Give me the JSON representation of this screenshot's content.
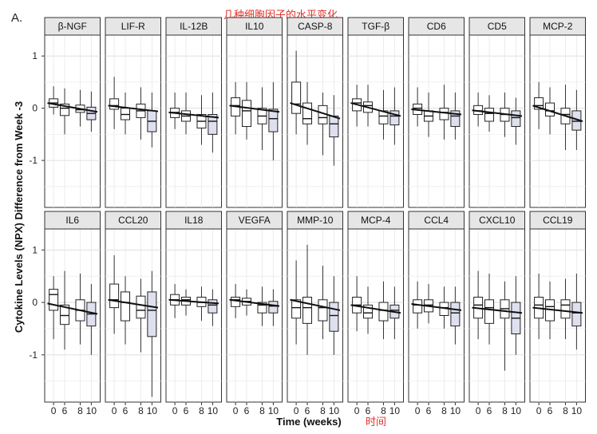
{
  "figure": {
    "panel_letter": "A.",
    "annotation_title": "几种细胞因子的水平变化",
    "annotation_xlabel": "时间"
  },
  "chart_data": {
    "type": "boxplot",
    "ylabel": "Cytokine Levels (NPX) Difference from Week -3",
    "xlabel": "Time (weeks)",
    "x_ticks": [
      "0",
      "6",
      "8",
      "10"
    ],
    "y_ticks": [
      1,
      0,
      -1
    ],
    "ylim": [
      -1.9,
      1.4
    ],
    "grid": true,
    "colors": {
      "box_fill_last": "#dfe0ef",
      "box_fill": "#ffffff",
      "strip_bg": "#e6e6e6",
      "trend_line": "#111111"
    },
    "facets": [
      {
        "label": "β-NGF",
        "trend": [
          0.1,
          -0.07
        ],
        "boxes": [
          {
            "q1": 0.02,
            "med": 0.1,
            "q3": 0.18,
            "lo": -0.12,
            "hi": 0.42
          },
          {
            "q1": -0.14,
            "med": 0.0,
            "q3": 0.08,
            "lo": -0.5,
            "hi": 0.38
          },
          {
            "q1": -0.08,
            "med": -0.03,
            "q3": 0.06,
            "lo": -0.35,
            "hi": 0.35
          },
          {
            "q1": -0.22,
            "med": -0.1,
            "q3": 0.02,
            "lo": -0.45,
            "hi": 0.32
          }
        ]
      },
      {
        "label": "LIF-R",
        "trend": [
          0.05,
          -0.06
        ],
        "boxes": [
          {
            "q1": -0.02,
            "med": 0.05,
            "q3": 0.18,
            "lo": -0.4,
            "hi": 0.6
          },
          {
            "q1": -0.22,
            "med": -0.12,
            "q3": 0.0,
            "lo": -0.5,
            "hi": 0.3
          },
          {
            "q1": -0.18,
            "med": -0.05,
            "q3": 0.08,
            "lo": -0.6,
            "hi": 0.4
          },
          {
            "q1": -0.45,
            "med": -0.25,
            "q3": -0.05,
            "lo": -0.75,
            "hi": 0.3
          }
        ]
      },
      {
        "label": "IL-12B",
        "trend": [
          -0.08,
          -0.18
        ],
        "boxes": [
          {
            "q1": -0.18,
            "med": -0.08,
            "q3": 0.0,
            "lo": -0.4,
            "hi": 0.3
          },
          {
            "q1": -0.25,
            "med": -0.15,
            "q3": -0.05,
            "lo": -0.5,
            "hi": 0.3
          },
          {
            "q1": -0.38,
            "med": -0.25,
            "q3": -0.12,
            "lo": -0.7,
            "hi": 0.25
          },
          {
            "q1": -0.5,
            "med": -0.25,
            "q3": -0.12,
            "lo": -0.85,
            "hi": 0.3
          }
        ]
      },
      {
        "label": "IL10",
        "trend": [
          0.05,
          -0.07
        ],
        "boxes": [
          {
            "q1": -0.15,
            "med": 0.05,
            "q3": 0.2,
            "lo": -0.5,
            "hi": 0.5
          },
          {
            "q1": -0.35,
            "med": -0.05,
            "q3": 0.15,
            "lo": -0.6,
            "hi": 0.5
          },
          {
            "q1": -0.3,
            "med": -0.15,
            "q3": 0.0,
            "lo": -0.8,
            "hi": 0.4
          },
          {
            "q1": -0.45,
            "med": -0.2,
            "q3": -0.02,
            "lo": -1.0,
            "hi": 0.5
          }
        ]
      },
      {
        "label": "CASP-8",
        "trend": [
          0.1,
          -0.2
        ],
        "boxes": [
          {
            "q1": -0.1,
            "med": 0.08,
            "q3": 0.5,
            "lo": -0.5,
            "hi": 1.1
          },
          {
            "q1": -0.3,
            "med": -0.2,
            "q3": 0.1,
            "lo": -0.7,
            "hi": 0.5
          },
          {
            "q1": -0.3,
            "med": -0.18,
            "q3": 0.05,
            "lo": -0.9,
            "hi": 0.3
          },
          {
            "q1": -0.55,
            "med": -0.3,
            "q3": -0.15,
            "lo": -1.1,
            "hi": 0.25
          }
        ]
      },
      {
        "label": "TGF-β",
        "trend": [
          0.1,
          -0.15
        ],
        "boxes": [
          {
            "q1": -0.05,
            "med": 0.1,
            "q3": 0.18,
            "lo": -0.35,
            "hi": 0.45
          },
          {
            "q1": -0.08,
            "med": 0.05,
            "q3": 0.12,
            "lo": -0.35,
            "hi": 0.45
          },
          {
            "q1": -0.3,
            "med": -0.15,
            "q3": -0.05,
            "lo": -0.6,
            "hi": 0.35
          },
          {
            "q1": -0.32,
            "med": -0.15,
            "q3": -0.05,
            "lo": -0.7,
            "hi": 0.4
          }
        ]
      },
      {
        "label": "CD6",
        "trend": [
          -0.02,
          -0.12
        ],
        "boxes": [
          {
            "q1": -0.12,
            "med": 0.0,
            "q3": 0.08,
            "lo": -0.35,
            "hi": 0.4
          },
          {
            "q1": -0.25,
            "med": -0.15,
            "q3": -0.05,
            "lo": -0.55,
            "hi": 0.3
          },
          {
            "q1": -0.22,
            "med": -0.08,
            "q3": 0.0,
            "lo": -0.6,
            "hi": 0.45
          },
          {
            "q1": -0.35,
            "med": -0.15,
            "q3": -0.05,
            "lo": -0.6,
            "hi": 0.3
          }
        ]
      },
      {
        "label": "CD5",
        "trend": [
          -0.04,
          -0.15
        ],
        "boxes": [
          {
            "q1": -0.12,
            "med": -0.05,
            "q3": 0.05,
            "lo": -0.35,
            "hi": 0.3
          },
          {
            "q1": -0.25,
            "med": -0.1,
            "q3": 0.0,
            "lo": -0.45,
            "hi": 0.25
          },
          {
            "q1": -0.25,
            "med": -0.12,
            "q3": 0.0,
            "lo": -0.55,
            "hi": 0.3
          },
          {
            "q1": -0.35,
            "med": -0.18,
            "q3": -0.05,
            "lo": -0.7,
            "hi": 0.2
          }
        ]
      },
      {
        "label": "MCP-2",
        "trend": [
          0.05,
          -0.25
        ],
        "boxes": [
          {
            "q1": -0.02,
            "med": 0.05,
            "q3": 0.2,
            "lo": -0.4,
            "hi": 0.5
          },
          {
            "q1": -0.15,
            "med": -0.05,
            "q3": 0.1,
            "lo": -0.5,
            "hi": 0.4
          },
          {
            "q1": -0.3,
            "med": -0.12,
            "q3": 0.0,
            "lo": -0.8,
            "hi": 0.45
          },
          {
            "q1": -0.42,
            "med": -0.25,
            "q3": -0.05,
            "lo": -0.8,
            "hi": 0.35
          }
        ]
      },
      {
        "label": "IL6",
        "trend": [
          -0.02,
          -0.22
        ],
        "boxes": [
          {
            "q1": -0.15,
            "med": 0.15,
            "q3": 0.25,
            "lo": -0.7,
            "hi": 0.5
          },
          {
            "q1": -0.42,
            "med": -0.25,
            "q3": -0.05,
            "lo": -0.9,
            "hi": 0.6
          },
          {
            "q1": -0.35,
            "med": -0.15,
            "q3": 0.05,
            "lo": -0.8,
            "hi": 0.55
          },
          {
            "q1": -0.45,
            "med": -0.22,
            "q3": 0.0,
            "lo": -1.0,
            "hi": 0.35
          }
        ]
      },
      {
        "label": "CCL20",
        "trend": [
          0.05,
          -0.1
        ],
        "boxes": [
          {
            "q1": -0.1,
            "med": 0.05,
            "q3": 0.35,
            "lo": -0.6,
            "hi": 0.9
          },
          {
            "q1": -0.35,
            "med": 0.0,
            "q3": 0.2,
            "lo": -0.8,
            "hi": 0.5
          },
          {
            "q1": -0.3,
            "med": -0.15,
            "q3": 0.12,
            "lo": -0.95,
            "hi": 0.45
          },
          {
            "q1": -0.65,
            "med": -0.15,
            "q3": 0.2,
            "lo": -1.8,
            "hi": 0.6
          }
        ]
      },
      {
        "label": "IL18",
        "trend": [
          0.05,
          -0.02
        ],
        "boxes": [
          {
            "q1": -0.05,
            "med": 0.05,
            "q3": 0.15,
            "lo": -0.3,
            "hi": 0.35
          },
          {
            "q1": -0.05,
            "med": 0.05,
            "q3": 0.1,
            "lo": -0.25,
            "hi": 0.25
          },
          {
            "q1": -0.08,
            "med": 0.0,
            "q3": 0.1,
            "lo": -0.35,
            "hi": 0.3
          },
          {
            "q1": -0.2,
            "med": -0.05,
            "q3": 0.05,
            "lo": -0.45,
            "hi": 0.25
          }
        ]
      },
      {
        "label": "VEGFA",
        "trend": [
          0.05,
          -0.07
        ],
        "boxes": [
          {
            "q1": -0.08,
            "med": 0.05,
            "q3": 0.1,
            "lo": -0.3,
            "hi": 0.35
          },
          {
            "q1": -0.05,
            "med": 0.02,
            "q3": 0.08,
            "lo": -0.25,
            "hi": 0.25
          },
          {
            "q1": -0.2,
            "med": -0.05,
            "q3": 0.0,
            "lo": -0.45,
            "hi": 0.3
          },
          {
            "q1": -0.2,
            "med": -0.07,
            "q3": 0.02,
            "lo": -0.45,
            "hi": 0.25
          }
        ]
      },
      {
        "label": "MMP-10",
        "trend": [
          0.05,
          -0.15
        ],
        "boxes": [
          {
            "q1": -0.3,
            "med": -0.1,
            "q3": 0.05,
            "lo": -0.8,
            "hi": 0.8
          },
          {
            "q1": -0.4,
            "med": -0.1,
            "q3": 0.1,
            "lo": -1.0,
            "hi": 1.1
          },
          {
            "q1": -0.35,
            "med": -0.1,
            "q3": 0.05,
            "lo": -0.7,
            "hi": 0.7
          },
          {
            "q1": -0.55,
            "med": -0.25,
            "q3": 0.0,
            "lo": -1.0,
            "hi": 0.5
          }
        ]
      },
      {
        "label": "MCP-4",
        "trend": [
          -0.05,
          -0.2
        ],
        "boxes": [
          {
            "q1": -0.2,
            "med": -0.05,
            "q3": 0.1,
            "lo": -0.55,
            "hi": 0.5
          },
          {
            "q1": -0.3,
            "med": -0.2,
            "q3": -0.05,
            "lo": -0.6,
            "hi": 0.3
          },
          {
            "q1": -0.35,
            "med": -0.15,
            "q3": 0.0,
            "lo": -0.7,
            "hi": 0.4
          },
          {
            "q1": -0.3,
            "med": -0.15,
            "q3": -0.05,
            "lo": -0.7,
            "hi": 0.3
          }
        ]
      },
      {
        "label": "CCL4",
        "trend": [
          -0.03,
          -0.15
        ],
        "boxes": [
          {
            "q1": -0.2,
            "med": -0.05,
            "q3": 0.05,
            "lo": -0.5,
            "hi": 0.4
          },
          {
            "q1": -0.18,
            "med": -0.05,
            "q3": 0.05,
            "lo": -0.4,
            "hi": 0.35
          },
          {
            "q1": -0.25,
            "med": -0.1,
            "q3": 0.0,
            "lo": -0.5,
            "hi": 0.3
          },
          {
            "q1": -0.45,
            "med": -0.2,
            "q3": 0.0,
            "lo": -0.8,
            "hi": 0.3
          }
        ]
      },
      {
        "label": "CXCL10",
        "trend": [
          -0.1,
          -0.2
        ],
        "boxes": [
          {
            "q1": -0.3,
            "med": -0.05,
            "q3": 0.1,
            "lo": -0.7,
            "hi": 0.6
          },
          {
            "q1": -0.4,
            "med": -0.1,
            "q3": 0.05,
            "lo": -0.8,
            "hi": 0.55
          },
          {
            "q1": -0.3,
            "med": -0.12,
            "q3": 0.05,
            "lo": -1.3,
            "hi": 0.4
          },
          {
            "q1": -0.6,
            "med": -0.3,
            "q3": 0.0,
            "lo": -1.0,
            "hi": 0.5
          }
        ]
      },
      {
        "label": "CCL19",
        "trend": [
          -0.1,
          -0.2
        ],
        "boxes": [
          {
            "q1": -0.3,
            "med": -0.05,
            "q3": 0.1,
            "lo": -0.7,
            "hi": 0.55
          },
          {
            "q1": -0.35,
            "med": -0.08,
            "q3": 0.05,
            "lo": -0.7,
            "hi": 0.4
          },
          {
            "q1": -0.3,
            "med": -0.05,
            "q3": 0.05,
            "lo": -0.7,
            "hi": 0.45
          },
          {
            "q1": -0.45,
            "med": -0.2,
            "q3": 0.0,
            "lo": -0.9,
            "hi": 0.55
          }
        ]
      }
    ]
  }
}
